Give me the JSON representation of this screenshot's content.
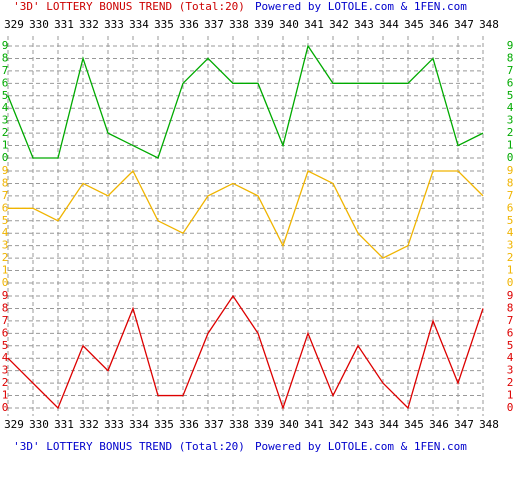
{
  "title": "'3D' LOTTERY BONUS TREND (Total:20)",
  "credit": "Powered by LOTOLE.com & 1FEN.com",
  "chart_data": {
    "type": "line",
    "categories": [
      "329",
      "330",
      "331",
      "332",
      "333",
      "334",
      "335",
      "336",
      "337",
      "338",
      "339",
      "340",
      "341",
      "342",
      "343",
      "344",
      "345",
      "346",
      "347",
      "348"
    ],
    "ylim": [
      0,
      9
    ],
    "yticks": [
      0,
      1,
      2,
      3,
      4,
      5,
      6,
      7,
      8,
      9
    ],
    "grid": true,
    "series": [
      {
        "color": "#00aa00",
        "values": [
          5,
          0,
          0,
          8,
          2,
          1,
          0,
          6,
          8,
          6,
          6,
          1,
          9,
          6,
          6,
          6,
          6,
          8,
          1,
          2
        ]
      },
      {
        "color": "#f0b400",
        "values": [
          6,
          6,
          5,
          8,
          7,
          9,
          5,
          4,
          7,
          8,
          7,
          3,
          9,
          8,
          4,
          2,
          3,
          9,
          9,
          7
        ]
      },
      {
        "color": "#dd0000",
        "values": [
          4,
          2,
          0,
          5,
          3,
          8,
          1,
          1,
          6,
          9,
          6,
          0,
          6,
          1,
          5,
          2,
          0,
          7,
          2,
          8
        ]
      }
    ]
  }
}
